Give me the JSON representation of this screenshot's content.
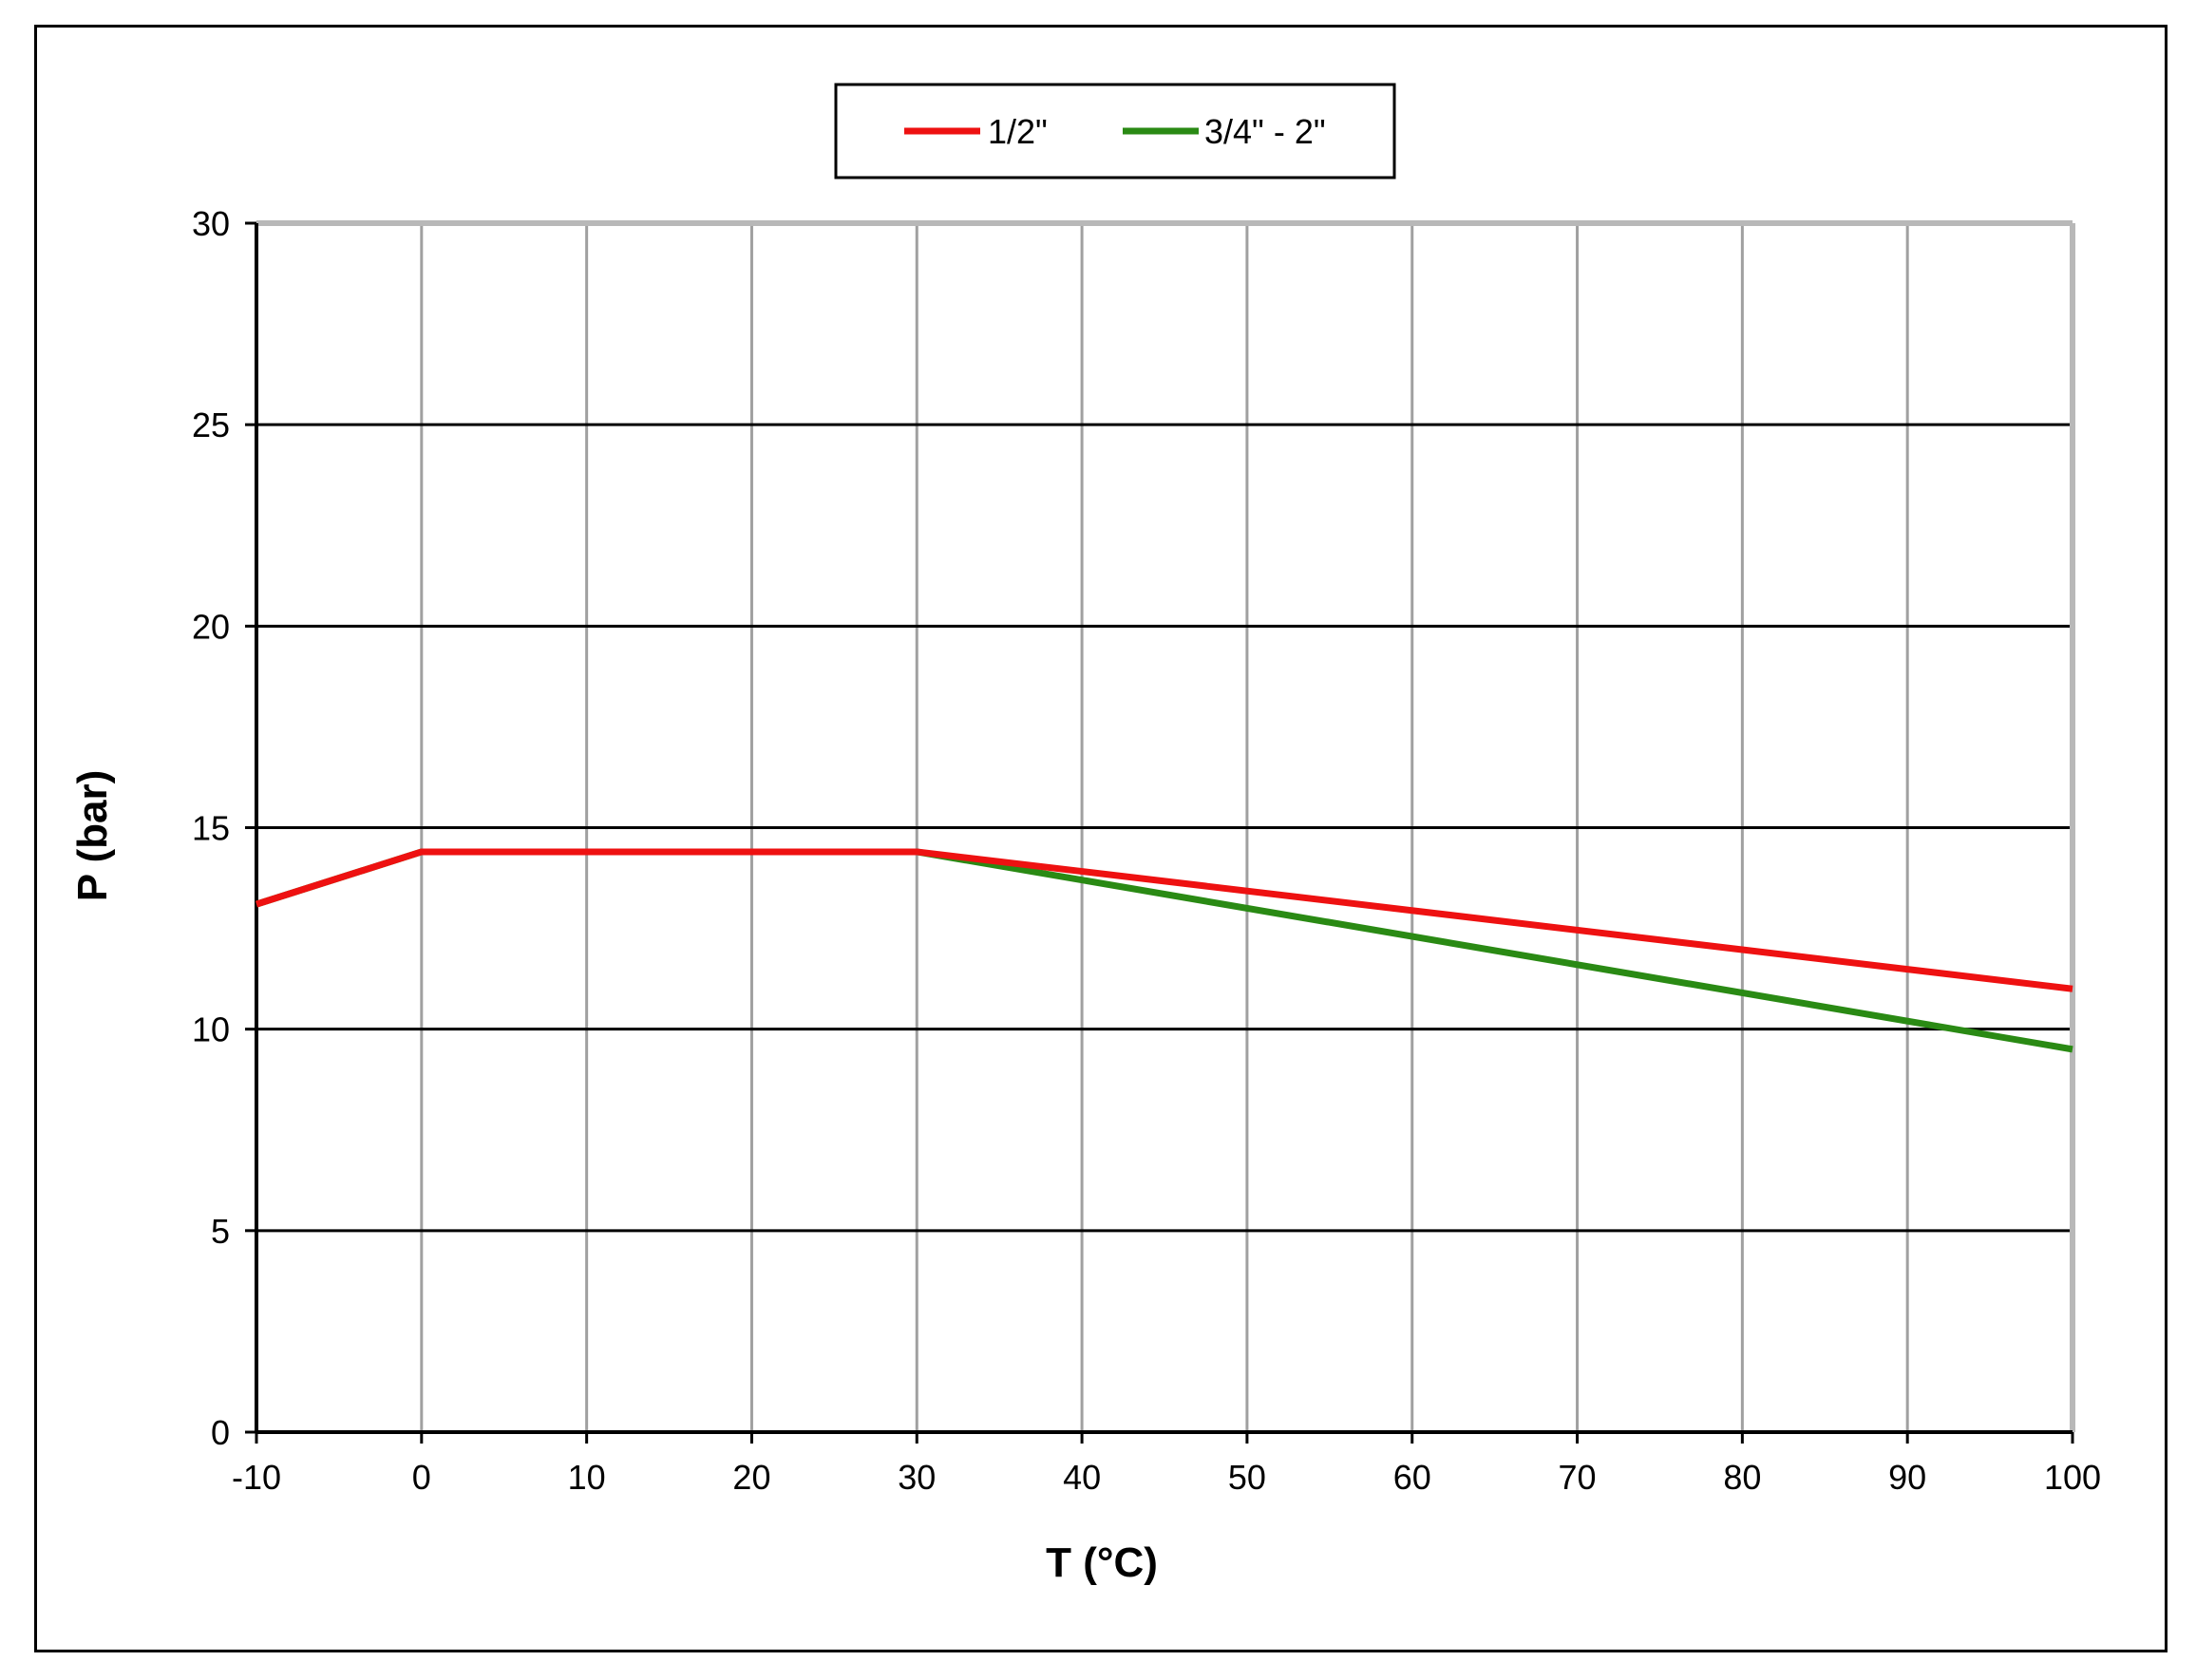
{
  "chart_data": {
    "type": "line",
    "title": "",
    "xlabel": "T (°C)",
    "ylabel": "P (bar)",
    "xlim": [
      -10,
      100
    ],
    "ylim": [
      0,
      30
    ],
    "xticks": [
      "-10",
      "0",
      "10",
      "20",
      "30",
      "40",
      "50",
      "60",
      "70",
      "80",
      "90",
      "100"
    ],
    "yticks": [
      "0",
      "5",
      "10",
      "15",
      "20",
      "25",
      "30"
    ],
    "grid": true,
    "legend_position": "top-center",
    "series": [
      {
        "name": "1/2\"",
        "color": "#ee1111",
        "points": [
          [
            -10,
            13.1
          ],
          [
            0,
            14.4
          ],
          [
            30,
            14.4
          ],
          [
            100,
            11.0
          ]
        ]
      },
      {
        "name": "3/4\" - 2\"",
        "color": "#2a8a14",
        "points": [
          [
            -10,
            13.1
          ],
          [
            0,
            14.4
          ],
          [
            30,
            14.4
          ],
          [
            100,
            9.5
          ]
        ]
      }
    ]
  }
}
